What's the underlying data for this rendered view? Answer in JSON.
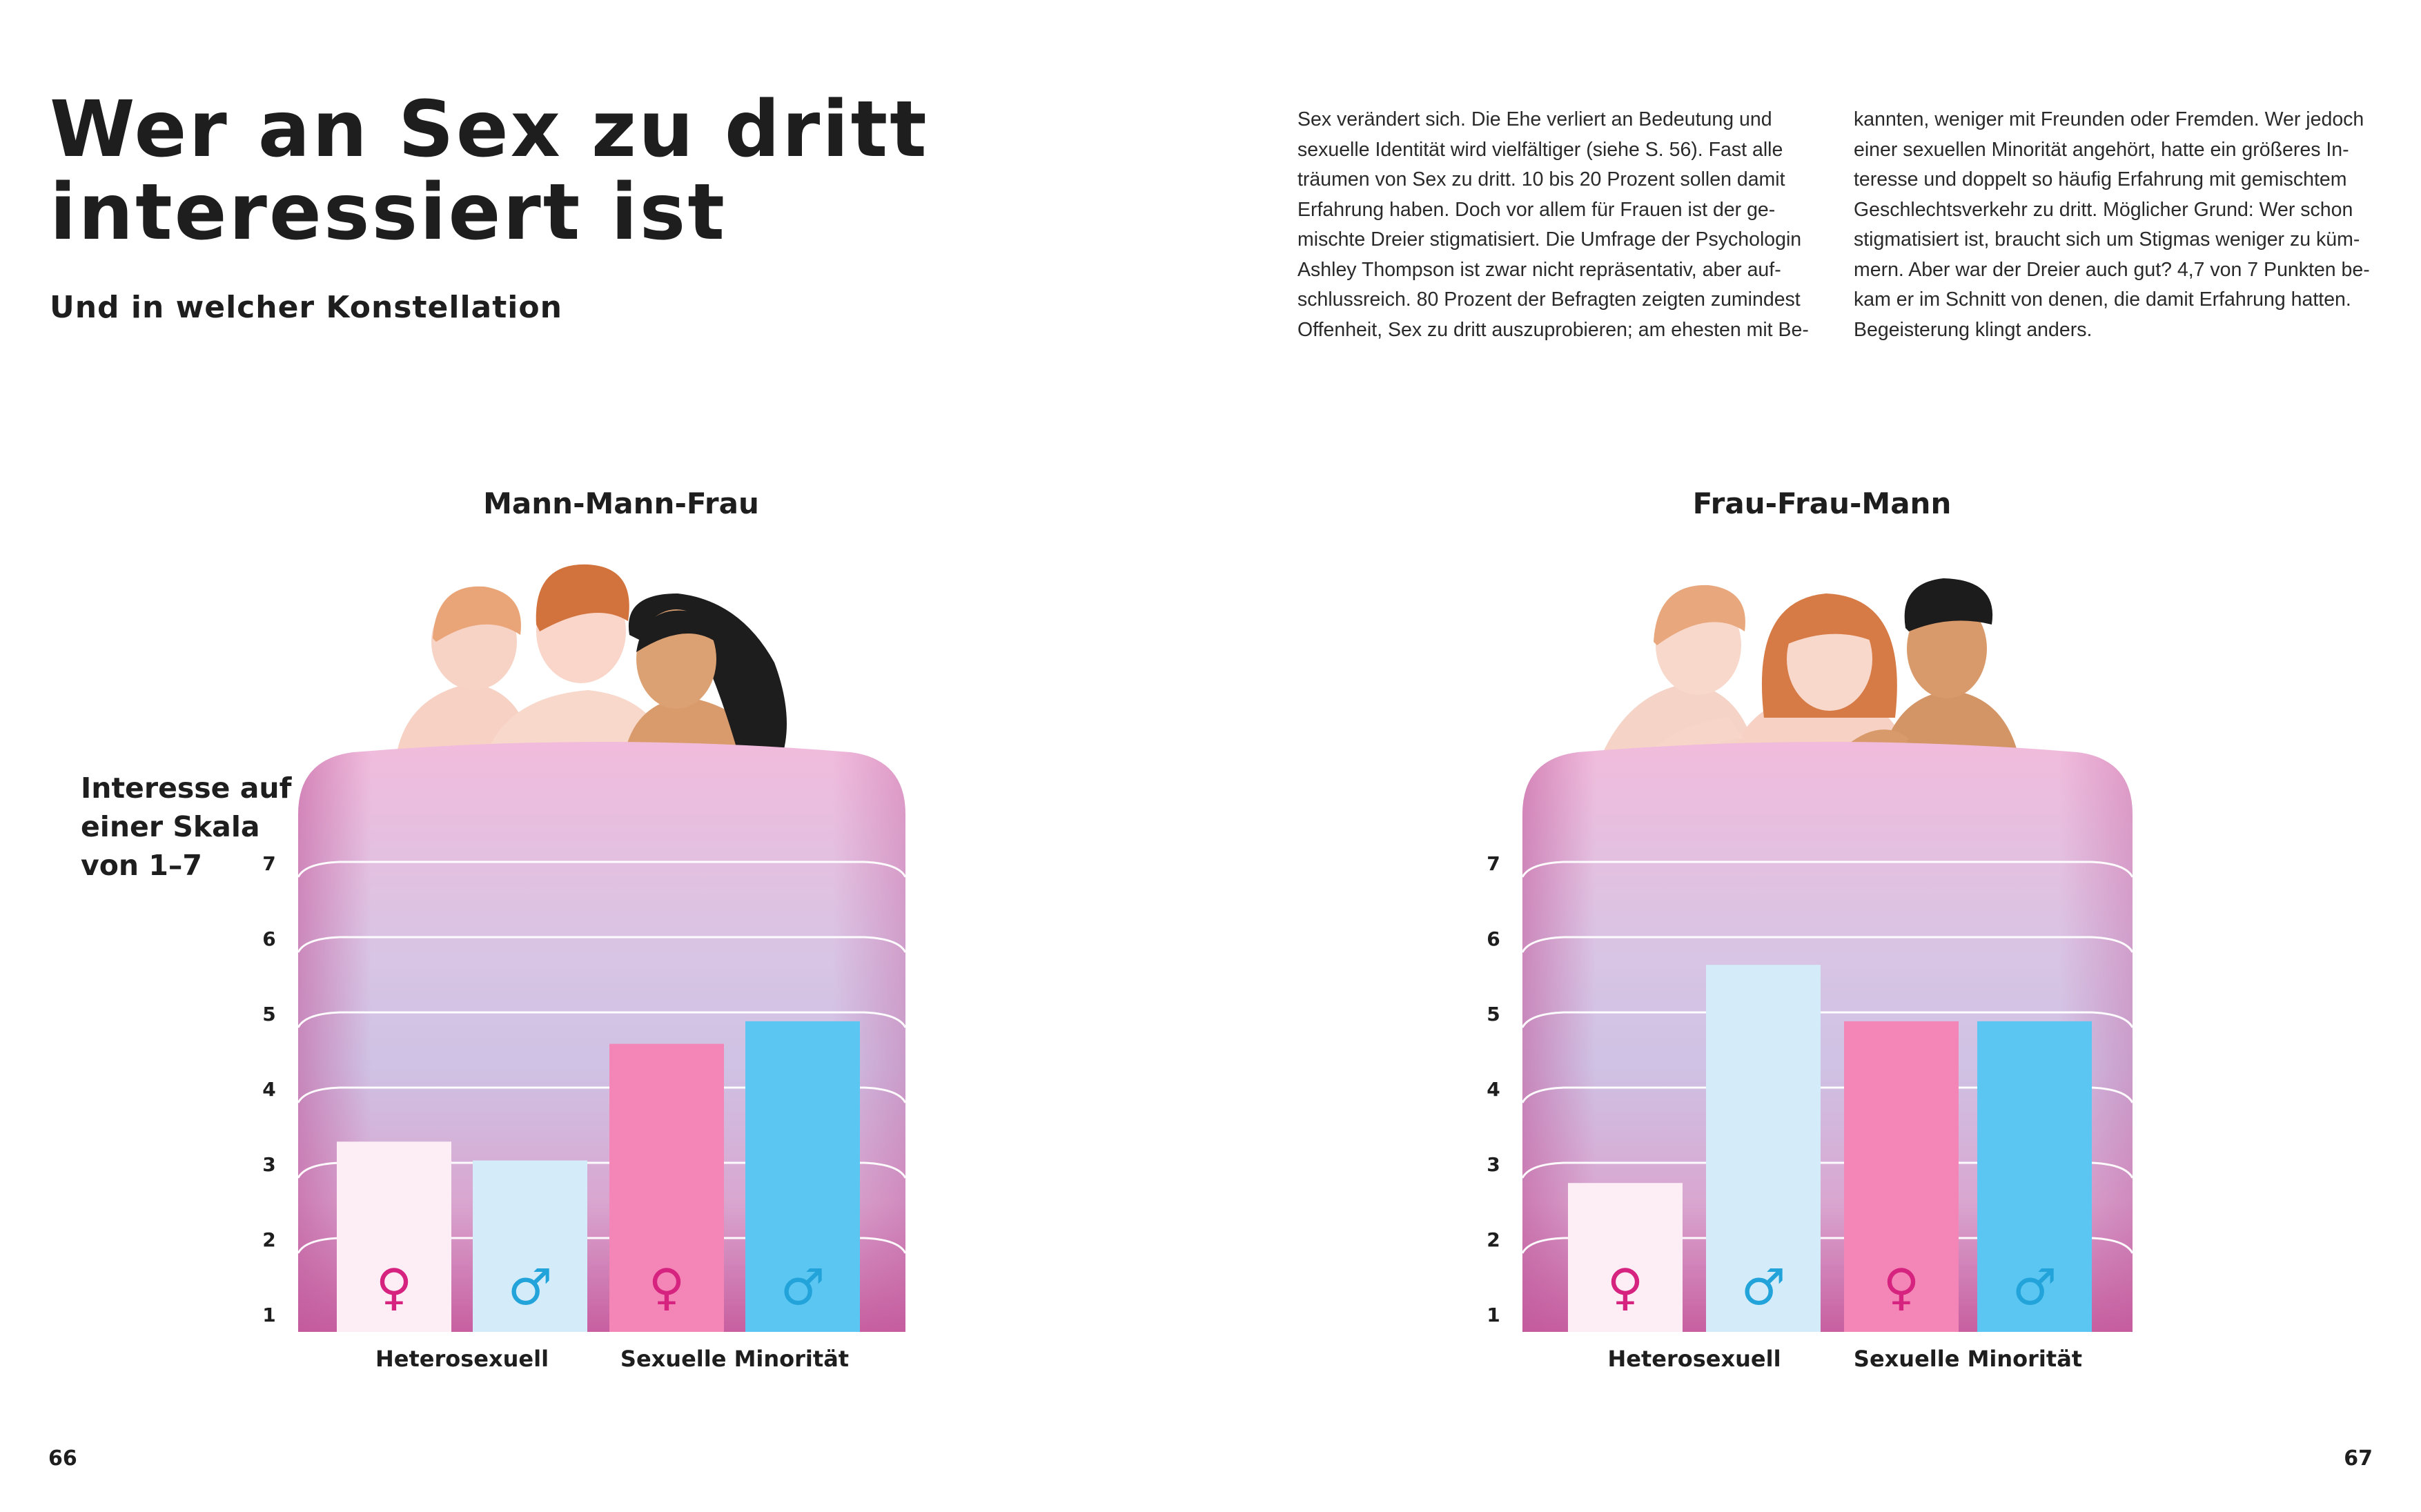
{
  "header": {
    "title_lines": [
      "Wer an Sex zu dritt",
      "interessiert ist"
    ],
    "subtitle": "Und in welcher Konstellation"
  },
  "body_text": {
    "column1": [
      "Sex verändert sich. Die Ehe verliert an Bedeutung und",
      "sexuelle Identität wird vielfältiger (siehe S. 56). Fast alle",
      "träumen von Sex zu dritt. 10 bis 20 Prozent sollen damit",
      "Erfahrung haben. Doch vor allem für Frauen ist der ge-",
      "mischte Dreier stigmatisiert. Die Umfrage der Psychologin",
      "Ashley Thompson ist zwar nicht repräsentativ, aber auf-",
      "schlussreich. 80 Prozent der Befragten zeigten zumindest",
      "Offenheit, Sex zu dritt auszuprobieren; am ehesten mit Be-"
    ],
    "column2": [
      "kannten, weniger mit Freunden oder Fremden. Wer jedoch",
      "einer sexuellen Minorität angehört, hatte ein größeres In-",
      "teresse und doppelt so häufig Erfahrung mit gemischtem",
      "Geschlechtsverkehr zu dritt. Möglicher Grund: Wer schon",
      "stigmatisiert ist, braucht sich um Stigmas weniger zu küm-",
      "mern. Aber war der Dreier auch gut? 4,7 von 7 Punkten be-",
      "kam er im Schnitt von denen, die damit Erfahrung hatten.",
      "Begeisterung klingt anders."
    ]
  },
  "page_numbers": {
    "left": "66",
    "right": "67"
  },
  "colors": {
    "female_hetero": "#fdeef6",
    "male_hetero": "#d4ebfa",
    "female_minority": "#f386b6",
    "male_minority": "#5bc6f2",
    "female_symbol": "#d6237f",
    "male_symbol": "#22a3d9"
  },
  "icons": [
    "female-symbol-icon",
    "male-symbol-icon",
    "bed-blanket-illustration",
    "couple-illustration"
  ],
  "symbols": {
    "female": "♀",
    "male": "♂"
  },
  "chart_data": [
    {
      "type": "bar",
      "title": "Mann-Mann-Frau",
      "ylabel_lines": [
        "Interesse auf",
        "einer Skala",
        "von 1–7"
      ],
      "yticks": [
        "1",
        "2",
        "3",
        "4",
        "5",
        "6",
        "7"
      ],
      "ylim": [
        1,
        7
      ],
      "groups": [
        "Heterosexuell",
        "Sexuelle Minorität"
      ],
      "bars": [
        {
          "group": "Heterosexuell",
          "sex": "female",
          "value": 3.3
        },
        {
          "group": "Heterosexuell",
          "sex": "male",
          "value": 3.05
        },
        {
          "group": "Sexuelle Minorität",
          "sex": "female",
          "value": 4.6
        },
        {
          "group": "Sexuelle Minorität",
          "sex": "male",
          "value": 4.9
        }
      ],
      "grid": true
    },
    {
      "type": "bar",
      "title": "Frau-Frau-Mann",
      "ylabel_lines": [],
      "yticks": [
        "1",
        "2",
        "3",
        "4",
        "5",
        "6",
        "7"
      ],
      "ylim": [
        1,
        7
      ],
      "groups": [
        "Heterosexuell",
        "Sexuelle Minorität"
      ],
      "bars": [
        {
          "group": "Heterosexuell",
          "sex": "female",
          "value": 2.75
        },
        {
          "group": "Heterosexuell",
          "sex": "male",
          "value": 5.65
        },
        {
          "group": "Sexuelle Minorität",
          "sex": "female",
          "value": 4.9
        },
        {
          "group": "Sexuelle Minorität",
          "sex": "male",
          "value": 4.9
        }
      ],
      "grid": true
    }
  ]
}
